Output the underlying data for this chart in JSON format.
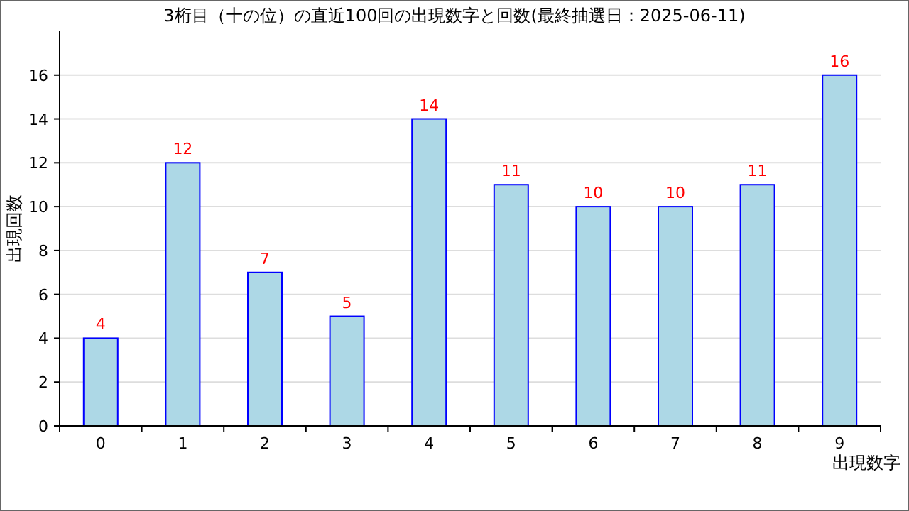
{
  "chart_data": {
    "type": "bar",
    "title": "3桁目（十の位）の直近100回の出現数字と回数(最終抽選日：2025-06-11)",
    "xlabel": "出現数字",
    "ylabel": "出現回数",
    "categories": [
      "0",
      "1",
      "2",
      "3",
      "4",
      "5",
      "6",
      "7",
      "8",
      "9"
    ],
    "values": [
      4,
      12,
      7,
      5,
      14,
      11,
      10,
      10,
      11,
      16
    ],
    "color": "#add8e6",
    "ylim": [
      0,
      18
    ],
    "yticks": [
      0,
      2,
      4,
      6,
      8,
      10,
      12,
      14,
      16
    ],
    "grid": "y",
    "data_labels": true
  }
}
